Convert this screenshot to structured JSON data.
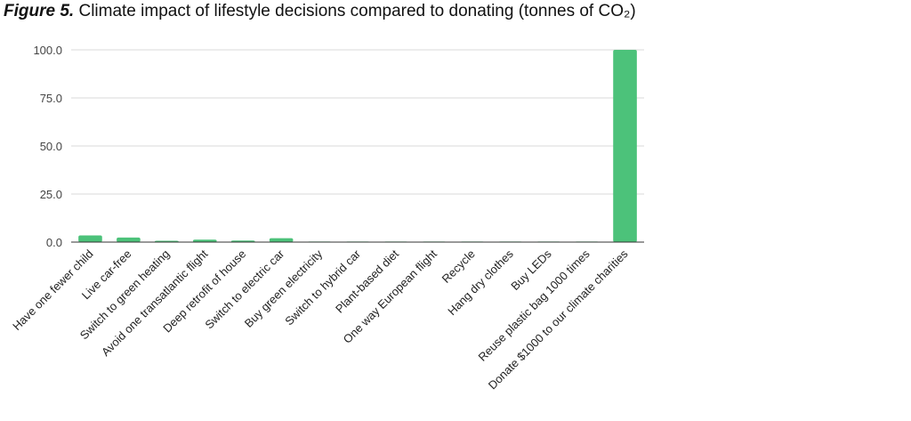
{
  "figure": {
    "label": "Figure 5.",
    "title": "Climate impact of lifestyle decisions compared to donating (tonnes of CO₂)"
  },
  "colors": {
    "bar": "#4cc27a",
    "grid": "#d9d9d9",
    "axis": "#333333"
  },
  "chart_data": {
    "type": "bar",
    "title": "Climate impact of lifestyle decisions compared to donating (tonnes of CO₂)",
    "xlabel": "",
    "ylabel": "",
    "ylim": [
      0,
      100
    ],
    "yticks": [
      "0.0",
      "25.0",
      "50.0",
      "75.0",
      "100.0"
    ],
    "grid": true,
    "legend": "none",
    "categories": [
      "Have one fewer child",
      "Live car-free",
      "Switch to green heating",
      "Avoid one transatlantic flight",
      "Deep retrofit of house",
      "Switch to electric car",
      "Buy green electricity",
      "Switch to hybrid car",
      "Plant-based diet",
      "One way European flight",
      "Recycle",
      "Hang dry clothes",
      "Buy LEDs",
      "Reuse plastic bag 1000 times",
      "Donate $1000 to our climate charities"
    ],
    "values": [
      3.5,
      2.4,
      0.7,
      1.3,
      0.8,
      2.0,
      0.2,
      0.3,
      0.3,
      0.2,
      0.2,
      0.1,
      0.1,
      0.04,
      100
    ]
  }
}
